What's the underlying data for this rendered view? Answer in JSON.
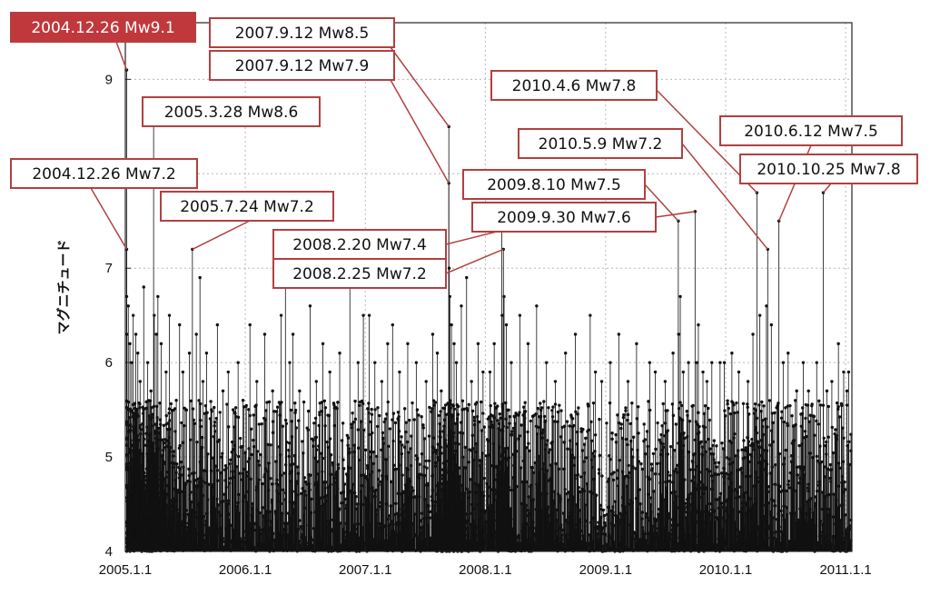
{
  "chart_data": {
    "type": "scatter",
    "ylabel": "マグニチュード",
    "xlabel": "",
    "title": "",
    "xlim": [
      "2005-01-01",
      "2011-01-20"
    ],
    "ylim": [
      4,
      9.6
    ],
    "grid": true,
    "x_ticks": [
      {
        "date": "2005-01-01",
        "label": "2005.1.1"
      },
      {
        "date": "2006-01-01",
        "label": "2006.1.1"
      },
      {
        "date": "2007-01-01",
        "label": "2007.1.1"
      },
      {
        "date": "2008-01-01",
        "label": "2008.1.1"
      },
      {
        "date": "2009-01-01",
        "label": "2009.1.1"
      },
      {
        "date": "2010-01-01",
        "label": "2010.1.1"
      },
      {
        "date": "2011-01-01",
        "label": "2011.1.1"
      }
    ],
    "y_ticks": [
      4,
      5,
      6,
      7,
      8,
      9
    ],
    "annotated_events": [
      {
        "date": "2004-12-26",
        "mw": 9.1,
        "label": "2004.12.26 Mw9.1",
        "highlight": true
      },
      {
        "date": "2004-12-26",
        "mw": 7.2,
        "label": "2004.12.26 Mw7.2"
      },
      {
        "date": "2005-03-28",
        "mw": 8.6,
        "label": "2005.3.28 Mw8.6"
      },
      {
        "date": "2005-07-24",
        "mw": 7.2,
        "label": "2005.7.24 Mw7.2"
      },
      {
        "date": "2007-09-12",
        "mw": 8.5,
        "label": "2007.9.12 Mw8.5"
      },
      {
        "date": "2007-09-12",
        "mw": 7.9,
        "label": "2007.9.12 Mw7.9"
      },
      {
        "date": "2008-02-20",
        "mw": 7.4,
        "label": "2008.2.20 Mw7.4"
      },
      {
        "date": "2008-02-25",
        "mw": 7.2,
        "label": "2008.2.25 Mw7.2"
      },
      {
        "date": "2009-08-10",
        "mw": 7.5,
        "label": "2009.8.10 Mw7.5"
      },
      {
        "date": "2009-09-30",
        "mw": 7.6,
        "label": "2009.9.30 Mw7.6"
      },
      {
        "date": "2010-04-06",
        "mw": 7.8,
        "label": "2010.4.6 Mw7.8"
      },
      {
        "date": "2010-05-09",
        "mw": 7.2,
        "label": "2010.5.9 Mw7.2"
      },
      {
        "date": "2010-06-12",
        "mw": 7.5,
        "label": "2010.6.12 Mw7.5"
      },
      {
        "date": "2010-10-25",
        "mw": 7.8,
        "label": "2010.10.25 Mw7.8"
      }
    ],
    "background_events": [
      [
        "2005-01-03",
        6.7
      ],
      [
        "2005-01-06",
        6.3
      ],
      [
        "2005-01-10",
        6.6
      ],
      [
        "2005-01-15",
        6.2
      ],
      [
        "2005-01-20",
        6.0
      ],
      [
        "2005-01-25",
        6.5
      ],
      [
        "2005-02-02",
        6.3
      ],
      [
        "2005-02-08",
        6.1
      ],
      [
        "2005-02-15",
        5.8
      ],
      [
        "2005-02-26",
        6.8
      ],
      [
        "2005-03-10",
        6.0
      ],
      [
        "2005-03-20",
        5.7
      ],
      [
        "2005-03-30",
        6.5
      ],
      [
        "2005-04-05",
        6.3
      ],
      [
        "2005-04-10",
        6.7
      ],
      [
        "2005-04-20",
        6.2
      ],
      [
        "2005-05-05",
        5.9
      ],
      [
        "2005-05-15",
        6.5
      ],
      [
        "2005-06-05",
        5.6
      ],
      [
        "2005-06-15",
        6.4
      ],
      [
        "2005-06-25",
        5.9
      ],
      [
        "2005-07-05",
        5.5
      ],
      [
        "2005-07-15",
        6.1
      ],
      [
        "2005-08-05",
        6.3
      ],
      [
        "2005-08-16",
        6.9
      ],
      [
        "2005-08-25",
        5.8
      ],
      [
        "2005-09-05",
        6.1
      ],
      [
        "2005-09-20",
        5.5
      ],
      [
        "2005-10-08",
        6.4
      ],
      [
        "2005-10-25",
        5.7
      ],
      [
        "2005-11-10",
        5.9
      ],
      [
        "2005-11-25",
        5.5
      ],
      [
        "2005-12-10",
        6.0
      ],
      [
        "2005-12-25",
        5.6
      ],
      [
        "2006-01-15",
        6.4
      ],
      [
        "2006-02-05",
        5.8
      ],
      [
        "2006-03-01",
        6.3
      ],
      [
        "2006-03-25",
        5.7
      ],
      [
        "2006-04-20",
        6.5
      ],
      [
        "2006-05-03",
        6.9
      ],
      [
        "2006-05-16",
        6.0
      ],
      [
        "2006-05-26",
        6.3
      ],
      [
        "2006-06-15",
        5.7
      ],
      [
        "2006-07-17",
        6.6
      ],
      [
        "2006-08-05",
        5.8
      ],
      [
        "2006-08-25",
        6.2
      ],
      [
        "2006-09-15",
        5.9
      ],
      [
        "2006-10-15",
        6.1
      ],
      [
        "2006-11-15",
        6.8
      ],
      [
        "2006-12-10",
        6.0
      ],
      [
        "2006-12-26",
        6.5
      ],
      [
        "2007-01-13",
        6.5
      ],
      [
        "2007-01-30",
        6.0
      ],
      [
        "2007-02-20",
        5.8
      ],
      [
        "2007-03-10",
        6.2
      ],
      [
        "2007-03-25",
        6.4
      ],
      [
        "2007-04-15",
        5.9
      ],
      [
        "2007-05-10",
        6.2
      ],
      [
        "2007-06-05",
        6.0
      ],
      [
        "2007-07-05",
        5.8
      ],
      [
        "2007-07-25",
        6.3
      ],
      [
        "2007-08-08",
        6.1
      ],
      [
        "2007-08-20",
        5.7
      ],
      [
        "2007-09-13",
        7.0
      ],
      [
        "2007-09-15",
        6.7
      ],
      [
        "2007-09-20",
        6.4
      ],
      [
        "2007-09-28",
        6.2
      ],
      [
        "2007-10-05",
        6.0
      ],
      [
        "2007-10-20",
        6.6
      ],
      [
        "2007-11-05",
        6.9
      ],
      [
        "2007-11-20",
        5.8
      ],
      [
        "2007-12-10",
        6.2
      ],
      [
        "2007-12-25",
        5.9
      ],
      [
        "2008-01-15",
        5.9
      ],
      [
        "2008-01-28",
        6.2
      ],
      [
        "2008-02-21",
        6.5
      ],
      [
        "2008-02-27",
        6.7
      ],
      [
        "2008-03-05",
        6.4
      ],
      [
        "2008-03-20",
        6.0
      ],
      [
        "2008-04-15",
        6.5
      ],
      [
        "2008-05-10",
        6.2
      ],
      [
        "2008-06-05",
        6.6
      ],
      [
        "2008-07-05",
        6.0
      ],
      [
        "2008-08-01",
        5.8
      ],
      [
        "2008-09-01",
        6.1
      ],
      [
        "2008-10-01",
        6.3
      ],
      [
        "2008-11-15",
        6.5
      ],
      [
        "2008-12-01",
        5.9
      ],
      [
        "2008-12-20",
        5.8
      ],
      [
        "2009-01-15",
        6.0
      ],
      [
        "2009-02-10",
        6.3
      ],
      [
        "2009-03-10",
        5.8
      ],
      [
        "2009-04-05",
        6.2
      ],
      [
        "2009-05-15",
        6.0
      ],
      [
        "2009-06-01",
        5.9
      ],
      [
        "2009-07-01",
        5.8
      ],
      [
        "2009-07-25",
        6.1
      ],
      [
        "2009-08-11",
        6.3
      ],
      [
        "2009-08-16",
        6.7
      ],
      [
        "2009-08-25",
        5.9
      ],
      [
        "2009-09-10",
        6.0
      ],
      [
        "2009-10-05",
        6.0
      ],
      [
        "2009-10-10",
        6.4
      ],
      [
        "2009-10-24",
        5.9
      ],
      [
        "2009-11-05",
        5.8
      ],
      [
        "2009-11-20",
        6.0
      ],
      [
        "2009-12-15",
        6.0
      ],
      [
        "2009-12-28",
        6.0
      ],
      [
        "2010-01-20",
        6.1
      ],
      [
        "2010-02-10",
        5.9
      ],
      [
        "2010-03-10",
        5.8
      ],
      [
        "2010-03-25",
        6.3
      ],
      [
        "2010-04-15",
        6.5
      ],
      [
        "2010-05-05",
        6.6
      ],
      [
        "2010-05-20",
        6.4
      ],
      [
        "2010-06-25",
        6.0
      ],
      [
        "2010-07-10",
        6.1
      ],
      [
        "2010-08-05",
        5.7
      ],
      [
        "2010-08-25",
        6.0
      ],
      [
        "2010-09-10",
        5.7
      ],
      [
        "2010-10-05",
        6.0
      ],
      [
        "2010-11-05",
        5.7
      ],
      [
        "2010-11-20",
        5.8
      ],
      [
        "2010-12-10",
        6.2
      ],
      [
        "2010-12-26",
        5.9
      ],
      [
        "2011-01-05",
        5.7
      ],
      [
        "2011-01-10",
        5.9
      ]
    ]
  }
}
